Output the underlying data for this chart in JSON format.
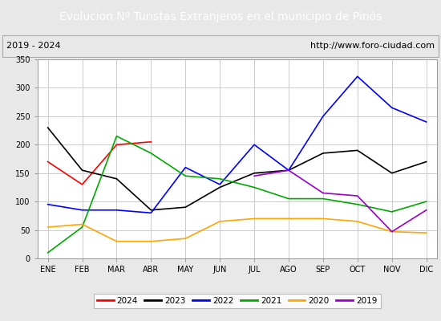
{
  "title": "Evolucion Nº Turistas Extranjeros en el municipio de Pinós",
  "subtitle_left": "2019 - 2024",
  "subtitle_right": "http://www.foro-ciudad.com",
  "title_bg_color": "#4472c4",
  "title_text_color": "#ffffff",
  "months": [
    "ENE",
    "FEB",
    "MAR",
    "ABR",
    "MAY",
    "JUN",
    "JUL",
    "AGO",
    "SEP",
    "OCT",
    "NOV",
    "DIC"
  ],
  "ylim": [
    0,
    350
  ],
  "yticks": [
    0,
    50,
    100,
    150,
    200,
    250,
    300,
    350
  ],
  "series": {
    "2024": {
      "color": "#ff0000",
      "values": [
        170,
        130,
        200,
        205,
        null,
        null,
        null,
        null,
        null,
        null,
        null,
        null
      ]
    },
    "2023": {
      "color": "#000000",
      "values": [
        230,
        155,
        140,
        85,
        90,
        125,
        150,
        155,
        185,
        190,
        150,
        170
      ]
    },
    "2022": {
      "color": "#0000ff",
      "values": [
        95,
        85,
        85,
        80,
        160,
        130,
        200,
        155,
        250,
        320,
        265,
        240
      ]
    },
    "2021": {
      "color": "#00aa00",
      "values": [
        10,
        55,
        215,
        185,
        145,
        140,
        125,
        105,
        105,
        95,
        82,
        100
      ]
    },
    "2020": {
      "color": "#ffa500",
      "values": [
        55,
        60,
        30,
        30,
        35,
        65,
        70,
        70,
        70,
        65,
        47,
        45
      ]
    },
    "2019": {
      "color": "#9900cc",
      "values": [
        null,
        null,
        null,
        null,
        null,
        null,
        145,
        155,
        115,
        110,
        47,
        85
      ]
    }
  },
  "legend_order": [
    "2024",
    "2023",
    "2022",
    "2021",
    "2020",
    "2019"
  ],
  "grid_color": "#cccccc",
  "bg_color": "#e8e8e8",
  "plot_bg_color": "#ffffff",
  "subtitle_border_color": "#aaaaaa",
  "title_fontsize": 10,
  "subtitle_fontsize": 8,
  "tick_fontsize": 7,
  "legend_fontsize": 7.5
}
